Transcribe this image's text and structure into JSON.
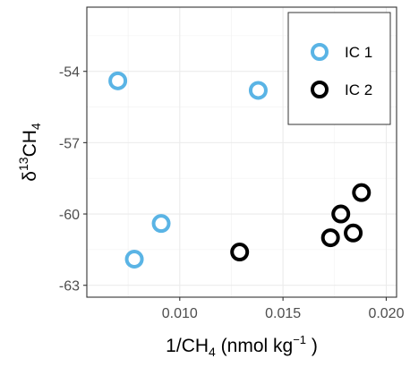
{
  "chart_data": {
    "type": "scatter",
    "title": "",
    "xlabel": {
      "prefix": "1",
      "slash": "/",
      "ch": "CH",
      "ch_sub": "4",
      "units_open": " (nmol kg",
      "units_sup": "−1",
      "units_close": " )"
    },
    "ylabel": {
      "delta": "δ",
      "sup": "13",
      "ch": "CH",
      "sub": "4"
    },
    "xlim": [
      0.0055,
      0.0205
    ],
    "ylim": [
      -63.5,
      -51.3
    ],
    "x_ticks": [
      0.01,
      0.015,
      0.02
    ],
    "x_tick_labels": [
      "0.010",
      "0.015",
      "0.020"
    ],
    "y_ticks": [
      -54,
      -57,
      -60,
      -63
    ],
    "y_tick_labels": [
      "-54",
      "-57",
      "-60",
      "-63"
    ],
    "grid": true,
    "legend_position": "top-right",
    "series": [
      {
        "name": "IC 1",
        "color": "#5ab4e5",
        "marker": "open-circle",
        "points": [
          {
            "x": 0.007,
            "y": -54.4
          },
          {
            "x": 0.0138,
            "y": -54.8
          },
          {
            "x": 0.0091,
            "y": -60.4
          },
          {
            "x": 0.0078,
            "y": -61.9
          }
        ]
      },
      {
        "name": "IC 2",
        "color": "#000000",
        "marker": "open-circle",
        "points": [
          {
            "x": 0.0129,
            "y": -61.6
          },
          {
            "x": 0.0173,
            "y": -61.0
          },
          {
            "x": 0.0178,
            "y": -60.0
          },
          {
            "x": 0.0184,
            "y": -60.8
          },
          {
            "x": 0.0188,
            "y": -59.1
          }
        ]
      }
    ]
  }
}
